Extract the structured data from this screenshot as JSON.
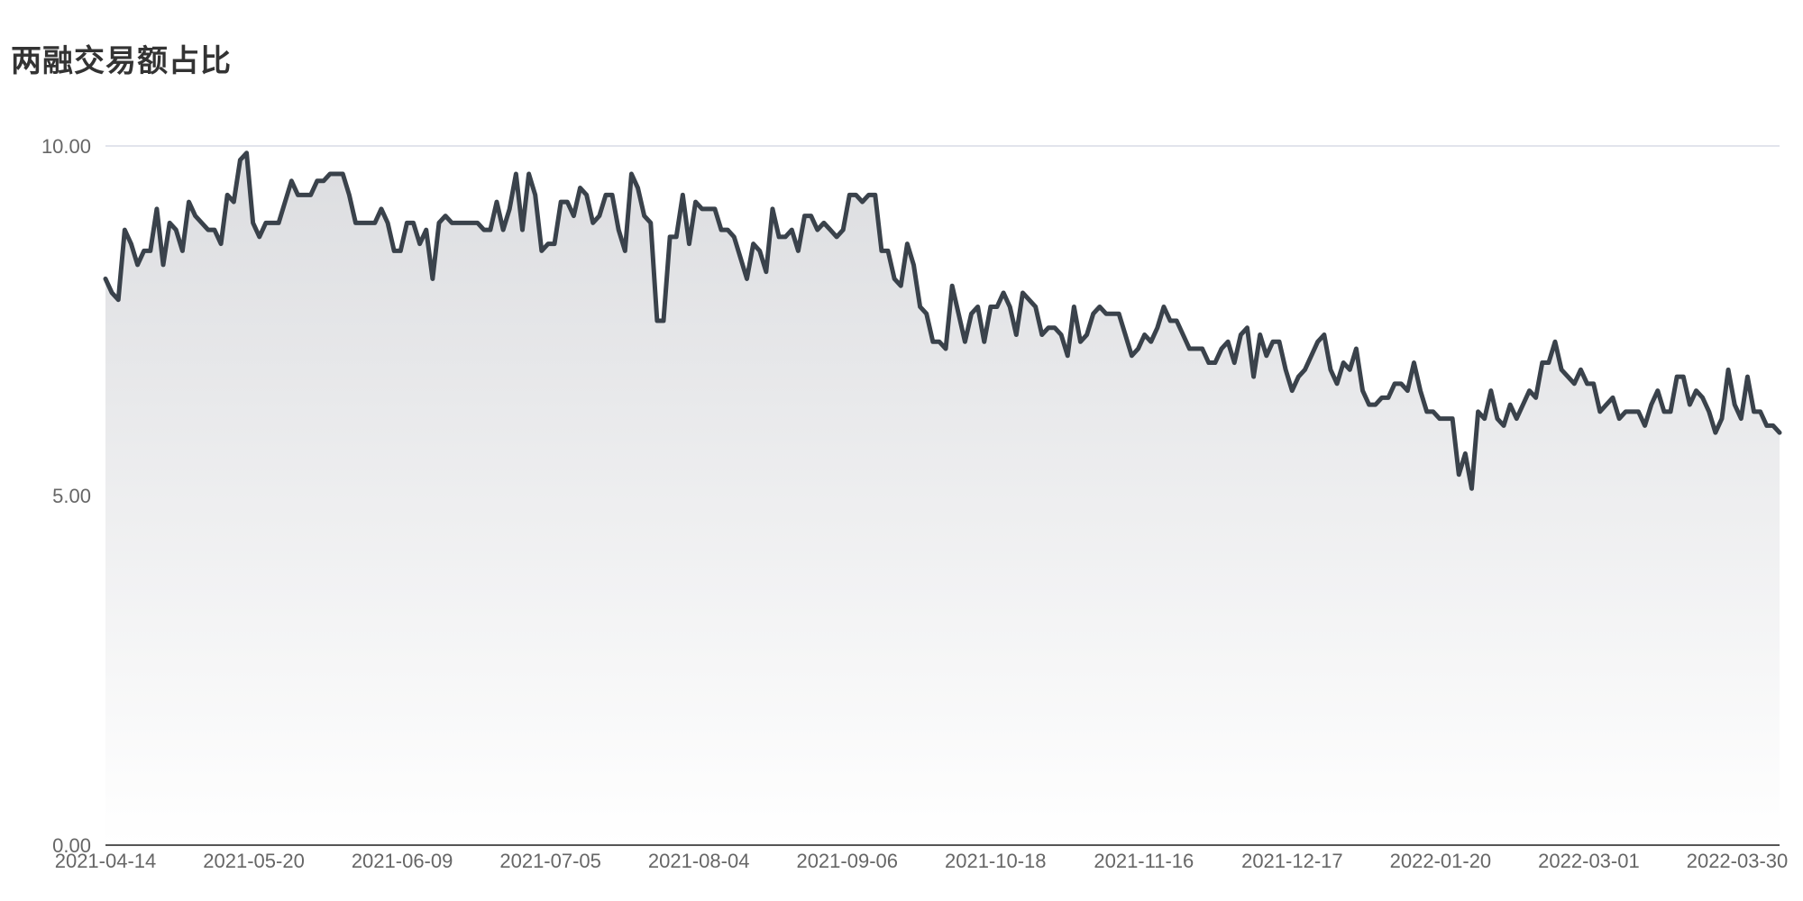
{
  "chart_data": {
    "type": "area",
    "title": "两融交易额占比",
    "xlabel": "",
    "ylabel": "",
    "ylim": [
      0,
      10
    ],
    "y_ticks": [
      "0.00",
      "5.00",
      "10.00"
    ],
    "y_tick_values": [
      0,
      5,
      10
    ],
    "x_tick_labels": [
      "2021-04-14",
      "2021-05-20",
      "2021-06-09",
      "2021-07-05",
      "2021-08-04",
      "2021-09-06",
      "2021-10-18",
      "2021-11-16",
      "2021-12-17",
      "2022-01-20",
      "2022-03-01",
      "2022-03-30"
    ],
    "grid": true,
    "legend": "none",
    "colors": {
      "line": "#3a424b",
      "area_top": "#dcdde0",
      "area_bottom": "#ffffff",
      "gridline": "#d8dbe6",
      "axis": "#555555"
    },
    "series": [
      {
        "values": [
          8.1,
          7.9,
          7.8,
          8.8,
          8.6,
          8.3,
          8.5,
          8.5,
          9.1,
          8.3,
          8.9,
          8.8,
          8.5,
          9.2,
          9.0,
          8.9,
          8.8,
          8.8,
          8.6,
          9.3,
          9.2,
          9.8,
          9.9,
          8.9,
          8.7,
          8.9,
          8.9,
          8.9,
          9.2,
          9.5,
          9.3,
          9.3,
          9.3,
          9.5,
          9.5,
          9.6,
          9.6,
          9.6,
          9.3,
          8.9,
          8.9,
          8.9,
          8.9,
          9.1,
          8.9,
          8.5,
          8.5,
          8.9,
          8.9,
          8.6,
          8.8,
          8.1,
          8.9,
          9.0,
          8.9,
          8.9,
          8.9,
          8.9,
          8.9,
          8.8,
          8.8,
          9.2,
          8.8,
          9.1,
          9.6,
          8.8,
          9.6,
          9.3,
          8.5,
          8.6,
          8.6,
          9.2,
          9.2,
          9.0,
          9.4,
          9.3,
          8.9,
          9.0,
          9.3,
          9.3,
          8.8,
          8.5,
          9.6,
          9.4,
          9.0,
          8.9,
          7.5,
          7.5,
          8.7,
          8.7,
          9.3,
          8.6,
          9.2,
          9.1,
          9.1,
          9.1,
          8.8,
          8.8,
          8.7,
          8.4,
          8.1,
          8.6,
          8.5,
          8.2,
          9.1,
          8.7,
          8.7,
          8.8,
          8.5,
          9.0,
          9.0,
          8.8,
          8.9,
          8.8,
          8.7,
          8.8,
          9.3,
          9.3,
          9.2,
          9.3,
          9.3,
          8.5,
          8.5,
          8.1,
          8.0,
          8.6,
          8.3,
          7.7,
          7.6,
          7.2,
          7.2,
          7.1,
          8.0,
          7.6,
          7.2,
          7.6,
          7.7,
          7.2,
          7.7,
          7.7,
          7.9,
          7.7,
          7.3,
          7.9,
          7.8,
          7.7,
          7.3,
          7.4,
          7.4,
          7.3,
          7.0,
          7.7,
          7.2,
          7.3,
          7.6,
          7.7,
          7.6,
          7.6,
          7.6,
          7.3,
          7.0,
          7.1,
          7.3,
          7.2,
          7.4,
          7.7,
          7.5,
          7.5,
          7.3,
          7.1,
          7.1,
          7.1,
          6.9,
          6.9,
          7.1,
          7.2,
          6.9,
          7.3,
          7.4,
          6.7,
          7.3,
          7.0,
          7.2,
          7.2,
          6.8,
          6.5,
          6.7,
          6.8,
          7.0,
          7.2,
          7.3,
          6.8,
          6.6,
          6.9,
          6.8,
          7.1,
          6.5,
          6.3,
          6.3,
          6.4,
          6.4,
          6.6,
          6.6,
          6.5,
          6.9,
          6.5,
          6.2,
          6.2,
          6.1,
          6.1,
          6.1,
          5.3,
          5.6,
          5.1,
          6.2,
          6.1,
          6.5,
          6.1,
          6.0,
          6.3,
          6.1,
          6.3,
          6.5,
          6.4,
          6.9,
          6.9,
          7.2,
          6.8,
          6.7,
          6.6,
          6.8,
          6.6,
          6.6,
          6.2,
          6.3,
          6.4,
          6.1,
          6.2,
          6.2,
          6.2,
          6.0,
          6.3,
          6.5,
          6.2,
          6.2,
          6.7,
          6.7,
          6.3,
          6.5,
          6.4,
          6.2,
          5.9,
          6.1,
          6.8,
          6.3,
          6.1,
          6.7,
          6.2,
          6.2,
          6.0,
          6.0,
          5.9
        ]
      }
    ]
  }
}
